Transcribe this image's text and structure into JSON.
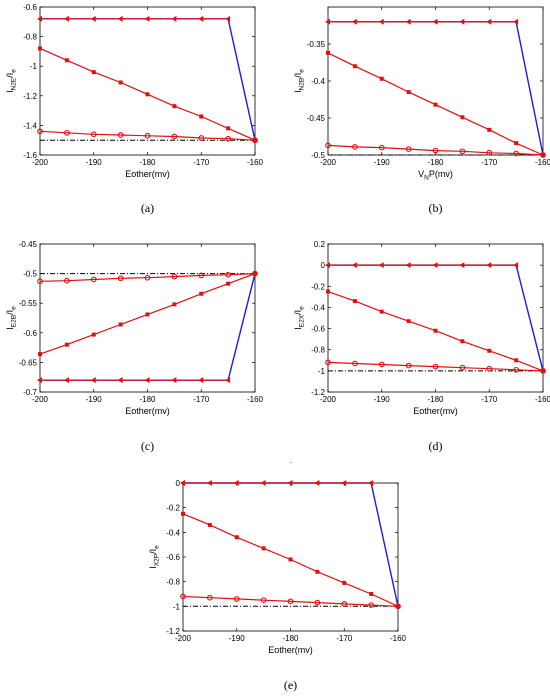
{
  "figure": {
    "stray_mark": "."
  },
  "chart_data": [
    {
      "id": "a",
      "panel_label": "(a)",
      "type": "line",
      "xlabel": "Eother(mv)",
      "ylabel": {
        "main": "I",
        "sub": "N2E",
        "rest": "/I",
        "sub2": "e"
      },
      "xlim": [
        -200,
        -160
      ],
      "ylim": [
        -1.6,
        -0.6
      ],
      "xticks": [
        -200,
        -190,
        -180,
        -170,
        -160
      ],
      "xtick_labels": [
        "-200",
        "-190",
        "-180",
        "-170",
        "-160"
      ],
      "yticks": [
        -1.6,
        -1.4,
        -1.2,
        -1.0,
        -0.8,
        -0.6
      ],
      "ytick_labels": [
        "-1.6",
        "-1.4",
        "-1.2",
        "-1",
        "-0.8",
        "-0.6"
      ],
      "series": [
        {
          "role": "dashdot",
          "color": "#000000",
          "x": [
            -200,
            -160
          ],
          "y": [
            -1.5,
            -1.5
          ]
        },
        {
          "role": "blue",
          "color": "#1f1fd0",
          "x": [
            -200,
            -195,
            -190,
            -185,
            -180,
            -175,
            -170,
            -165,
            -160
          ],
          "y": [
            -0.68,
            -0.68,
            -0.68,
            -0.68,
            -0.68,
            -0.68,
            -0.68,
            -0.68,
            -1.5
          ]
        },
        {
          "role": "triangles",
          "color": "#e01010",
          "marker": "triangle-left",
          "x": [
            -200,
            -195,
            -190,
            -185,
            -180,
            -175,
            -170,
            -165
          ],
          "y": [
            -0.68,
            -0.68,
            -0.68,
            -0.68,
            -0.68,
            -0.68,
            -0.68,
            -0.68
          ]
        },
        {
          "role": "squares",
          "color": "#e01010",
          "marker": "square",
          "x": [
            -200,
            -195,
            -190,
            -185,
            -180,
            -175,
            -170,
            -165,
            -160
          ],
          "y": [
            -0.88,
            -0.96,
            -1.04,
            -1.11,
            -1.19,
            -1.27,
            -1.34,
            -1.42,
            -1.5
          ]
        },
        {
          "role": "circles",
          "color": "#e01010",
          "marker": "circle",
          "x": [
            -200,
            -195,
            -190,
            -185,
            -180,
            -175,
            -170,
            -165,
            -160
          ],
          "y": [
            -1.44,
            -1.45,
            -1.46,
            -1.465,
            -1.47,
            -1.475,
            -1.485,
            -1.49,
            -1.5
          ]
        }
      ]
    },
    {
      "id": "b",
      "panel_label": "(b)",
      "type": "line",
      "xlabel": "V_NP(mv)",
      "xlabel_parts": {
        "main": "V",
        "sub": "N",
        "rest": "P(mv)"
      },
      "ylabel": {
        "main": "I",
        "sub": "N2B",
        "rest": "/I",
        "sub2": "e"
      },
      "xlim": [
        -200,
        -160
      ],
      "ylim": [
        -0.5,
        -0.3
      ],
      "xticks": [
        -200,
        -190,
        -180,
        -170,
        -160
      ],
      "xtick_labels": [
        "-200",
        "-190",
        "-180",
        "-170",
        "-160"
      ],
      "yticks": [
        -0.5,
        -0.45,
        -0.4,
        -0.35
      ],
      "ytick_labels": [
        "-0.5",
        "-0.45",
        "-0.4",
        "-0.35"
      ],
      "series": [
        {
          "role": "dashdot",
          "color": "#000000",
          "x": [
            -200,
            -160
          ],
          "y": [
            -0.5,
            -0.5
          ]
        },
        {
          "role": "blue",
          "color": "#1f1fd0",
          "x": [
            -200,
            -195,
            -190,
            -185,
            -180,
            -175,
            -170,
            -165,
            -160
          ],
          "y": [
            -0.32,
            -0.32,
            -0.32,
            -0.32,
            -0.32,
            -0.32,
            -0.32,
            -0.32,
            -0.5
          ]
        },
        {
          "role": "triangles",
          "color": "#e01010",
          "marker": "triangle-left",
          "x": [
            -200,
            -195,
            -190,
            -185,
            -180,
            -175,
            -170,
            -165
          ],
          "y": [
            -0.32,
            -0.32,
            -0.32,
            -0.32,
            -0.32,
            -0.32,
            -0.32,
            -0.32
          ]
        },
        {
          "role": "squares",
          "color": "#e01010",
          "marker": "square",
          "x": [
            -200,
            -195,
            -190,
            -185,
            -180,
            -175,
            -170,
            -165,
            -160
          ],
          "y": [
            -0.362,
            -0.38,
            -0.397,
            -0.415,
            -0.432,
            -0.449,
            -0.466,
            -0.484,
            -0.5
          ]
        },
        {
          "role": "circles",
          "color": "#e01010",
          "marker": "circle",
          "x": [
            -200,
            -195,
            -190,
            -185,
            -180,
            -175,
            -170,
            -165,
            -160
          ],
          "y": [
            -0.487,
            -0.489,
            -0.49,
            -0.492,
            -0.494,
            -0.495,
            -0.497,
            -0.498,
            -0.5
          ]
        }
      ]
    },
    {
      "id": "c",
      "panel_label": "(c)",
      "type": "line",
      "xlabel": "Eother(mv)",
      "ylabel": {
        "main": "I",
        "sub": "E2B",
        "rest": "/I",
        "sub2": "e"
      },
      "xlim": [
        -200,
        -160
      ],
      "ylim": [
        -0.7,
        -0.45
      ],
      "xticks": [
        -200,
        -190,
        -180,
        -170,
        -160
      ],
      "xtick_labels": [
        "-200",
        "-190",
        "-180",
        "-170",
        "-160"
      ],
      "yticks": [
        -0.7,
        -0.65,
        -0.6,
        -0.55,
        -0.5,
        -0.45
      ],
      "ytick_labels": [
        "-0.7",
        "-0.65",
        "-0.6",
        "-0.55",
        "-0.5",
        "-0.45"
      ],
      "series": [
        {
          "role": "dashdot",
          "color": "#000000",
          "x": [
            -200,
            -160
          ],
          "y": [
            -0.5,
            -0.5
          ]
        },
        {
          "role": "blue",
          "color": "#1f1fd0",
          "x": [
            -200,
            -195,
            -190,
            -185,
            -180,
            -175,
            -170,
            -165,
            -160
          ],
          "y": [
            -0.68,
            -0.68,
            -0.68,
            -0.68,
            -0.68,
            -0.68,
            -0.68,
            -0.68,
            -0.5
          ]
        },
        {
          "role": "triangles",
          "color": "#e01010",
          "marker": "triangle-left",
          "x": [
            -200,
            -195,
            -190,
            -185,
            -180,
            -175,
            -170,
            -165
          ],
          "y": [
            -0.68,
            -0.68,
            -0.68,
            -0.68,
            -0.68,
            -0.68,
            -0.68,
            -0.68
          ]
        },
        {
          "role": "squares",
          "color": "#e01010",
          "marker": "square",
          "x": [
            -200,
            -195,
            -190,
            -185,
            -180,
            -175,
            -170,
            -165,
            -160
          ],
          "y": [
            -0.636,
            -0.62,
            -0.603,
            -0.586,
            -0.569,
            -0.552,
            -0.534,
            -0.517,
            -0.5
          ]
        },
        {
          "role": "circles",
          "color": "#e01010",
          "marker": "circle",
          "x": [
            -200,
            -195,
            -190,
            -185,
            -180,
            -175,
            -170,
            -165,
            -160
          ],
          "y": [
            -0.513,
            -0.512,
            -0.51,
            -0.508,
            -0.507,
            -0.505,
            -0.503,
            -0.502,
            -0.5
          ]
        }
      ]
    },
    {
      "id": "d",
      "panel_label": "(d)",
      "type": "line",
      "xlabel": "Eother(mv)",
      "ylabel": {
        "main": "I",
        "sub": "E2X",
        "rest": "/I",
        "sub2": "e"
      },
      "xlim": [
        -200,
        -160
      ],
      "ylim": [
        -1.2,
        0.2
      ],
      "xticks": [
        -200,
        -190,
        -180,
        -170,
        -160
      ],
      "xtick_labels": [
        "-200",
        "-190",
        "-180",
        "-170",
        "-160"
      ],
      "yticks": [
        -1.2,
        -1.0,
        -0.8,
        -0.6,
        -0.4,
        -0.2,
        0,
        0.2
      ],
      "ytick_labels": [
        "-1.2",
        "-1",
        "-0.8",
        "-0.6",
        "-0.4",
        "-0.2",
        "0",
        "0.2"
      ],
      "series": [
        {
          "role": "dashdot",
          "color": "#000000",
          "x": [
            -200,
            -160
          ],
          "y": [
            -1.0,
            -1.0
          ]
        },
        {
          "role": "blue",
          "color": "#1f1fd0",
          "x": [
            -200,
            -195,
            -190,
            -185,
            -180,
            -175,
            -170,
            -165,
            -160
          ],
          "y": [
            0,
            0,
            0,
            0,
            0,
            0,
            0,
            0,
            -1.0
          ]
        },
        {
          "role": "triangles",
          "color": "#e01010",
          "marker": "triangle-left",
          "x": [
            -200,
            -195,
            -190,
            -185,
            -180,
            -175,
            -170,
            -165
          ],
          "y": [
            0,
            0,
            0,
            0,
            0,
            0,
            0,
            0
          ]
        },
        {
          "role": "squares",
          "color": "#e01010",
          "marker": "square",
          "x": [
            -200,
            -195,
            -190,
            -185,
            -180,
            -175,
            -170,
            -165,
            -160
          ],
          "y": [
            -0.25,
            -0.34,
            -0.44,
            -0.53,
            -0.62,
            -0.72,
            -0.81,
            -0.9,
            -1.0
          ]
        },
        {
          "role": "circles",
          "color": "#e01010",
          "marker": "circle",
          "x": [
            -200,
            -195,
            -190,
            -185,
            -180,
            -175,
            -170,
            -165,
            -160
          ],
          "y": [
            -0.92,
            -0.93,
            -0.94,
            -0.95,
            -0.96,
            -0.97,
            -0.98,
            -0.99,
            -1.0
          ]
        }
      ]
    },
    {
      "id": "e",
      "panel_label": "(e)",
      "type": "line",
      "xlabel": "Eother(mv)",
      "ylabel": {
        "main": "I",
        "sub": "X2P",
        "rest": "/I",
        "sub2": "e"
      },
      "xlim": [
        -200,
        -160
      ],
      "ylim": [
        -1.2,
        0
      ],
      "xticks": [
        -200,
        -190,
        -180,
        -170,
        -160
      ],
      "xtick_labels": [
        "-200",
        "-190",
        "-180",
        "-170",
        "-160"
      ],
      "yticks": [
        -1.2,
        -1.0,
        -0.8,
        -0.6,
        -0.4,
        -0.2,
        0
      ],
      "ytick_labels": [
        "-1.2",
        "-1",
        "-0.8",
        "-0.6",
        "-0.4",
        "-0.2",
        "0"
      ],
      "series": [
        {
          "role": "dashdot",
          "color": "#000000",
          "x": [
            -200,
            -160
          ],
          "y": [
            -1.0,
            -1.0
          ]
        },
        {
          "role": "blue",
          "color": "#1f1fd0",
          "x": [
            -200,
            -195,
            -190,
            -185,
            -180,
            -175,
            -170,
            -165,
            -160
          ],
          "y": [
            0,
            0,
            0,
            0,
            0,
            0,
            0,
            0,
            -1.0
          ]
        },
        {
          "role": "triangles",
          "color": "#e01010",
          "marker": "triangle-left",
          "x": [
            -200,
            -195,
            -190,
            -185,
            -180,
            -175,
            -170,
            -165
          ],
          "y": [
            0,
            0,
            0,
            0,
            0,
            0,
            0,
            0
          ]
        },
        {
          "role": "squares",
          "color": "#e01010",
          "marker": "square",
          "x": [
            -200,
            -195,
            -190,
            -185,
            -180,
            -175,
            -170,
            -165,
            -160
          ],
          "y": [
            -0.25,
            -0.34,
            -0.44,
            -0.53,
            -0.62,
            -0.72,
            -0.81,
            -0.9,
            -1.0
          ]
        },
        {
          "role": "circles",
          "color": "#e01010",
          "marker": "circle",
          "x": [
            -200,
            -195,
            -190,
            -185,
            -180,
            -175,
            -170,
            -165,
            -160
          ],
          "y": [
            -0.92,
            -0.93,
            -0.94,
            -0.95,
            -0.96,
            -0.97,
            -0.98,
            -0.99,
            -1.0
          ]
        }
      ]
    }
  ]
}
